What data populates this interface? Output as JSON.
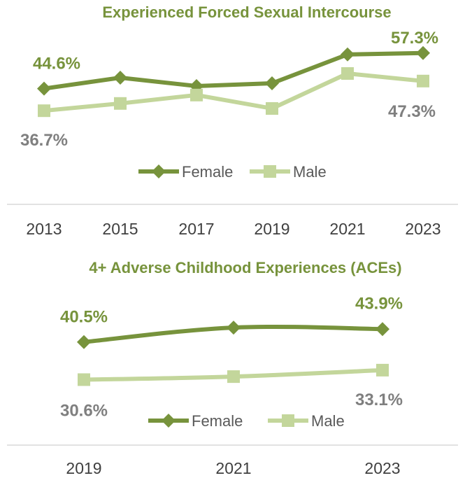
{
  "colors": {
    "female": "#77933c",
    "male": "#c3d69b",
    "title": "#77933c",
    "female_label": "#77933c",
    "male_label": "#7f7f7f",
    "axis": "#d9d9d9"
  },
  "chart_data": [
    {
      "type": "line",
      "title": "Experienced Forced Sexual Intercourse",
      "categories": [
        "2013",
        "2015",
        "2017",
        "2019",
        "2021",
        "2023"
      ],
      "ylim": [
        25,
        65
      ],
      "series": [
        {
          "name": "Female",
          "values": [
            44.6,
            48.5,
            45.5,
            46.5,
            56.8,
            57.3
          ],
          "marker": "diamond"
        },
        {
          "name": "Male",
          "values": [
            36.7,
            39.3,
            42.3,
            37.5,
            50.0,
            47.3
          ],
          "marker": "square"
        }
      ],
      "data_labels": [
        {
          "series": "Female",
          "index": 0,
          "text": "44.6%"
        },
        {
          "series": "Female",
          "index": 5,
          "text": "57.3%"
        },
        {
          "series": "Male",
          "index": 0,
          "text": "36.7%"
        },
        {
          "series": "Male",
          "index": 5,
          "text": "47.3%"
        }
      ],
      "legend": "bottom",
      "grid": false
    },
    {
      "type": "line",
      "title": "4+ Adverse Childhood Experiences (ACEs)",
      "categories": [
        "2019",
        "2021",
        "2023"
      ],
      "ylim": [
        20,
        55
      ],
      "series": [
        {
          "name": "Female",
          "values": [
            40.5,
            44.3,
            43.9
          ],
          "marker": "diamond"
        },
        {
          "name": "Male",
          "values": [
            30.6,
            31.4,
            33.1
          ],
          "marker": "square"
        }
      ],
      "data_labels": [
        {
          "series": "Female",
          "index": 0,
          "text": "40.5%"
        },
        {
          "series": "Female",
          "index": 2,
          "text": "43.9%"
        },
        {
          "series": "Male",
          "index": 0,
          "text": "30.6%"
        },
        {
          "series": "Male",
          "index": 2,
          "text": "33.1%"
        }
      ],
      "legend": "bottom",
      "grid": false
    }
  ]
}
